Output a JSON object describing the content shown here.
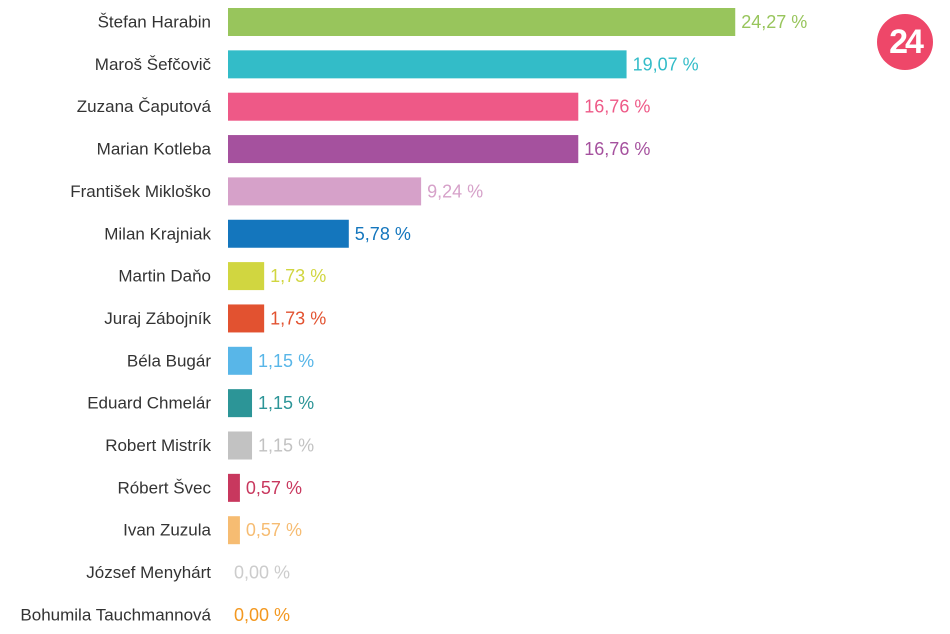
{
  "brand": {
    "logo_text": "24",
    "logo_color": "#ee4769"
  },
  "chart_data": {
    "type": "bar",
    "orientation": "horizontal",
    "categories": [
      "Štefan Harabin",
      "Maroš Šefčovič",
      "Zuzana Čaputová",
      "Marian Kotleba",
      "František Mikloško",
      "Milan Krajniak",
      "Martin Daňo",
      "Juraj Zábojník",
      "Béla Bugár",
      "Eduard Chmelár",
      "Robert Mistrík",
      "Róbert Švec",
      "Ivan Zuzula",
      "József Menyhárt",
      "Bohumila Tauchmannová"
    ],
    "values": [
      24.27,
      19.07,
      16.76,
      16.76,
      9.24,
      5.78,
      1.73,
      1.73,
      1.15,
      1.15,
      1.15,
      0.57,
      0.57,
      0.0,
      0.0
    ],
    "value_labels": [
      "24,27 %",
      "19,07 %",
      "16,76 %",
      "16,76 %",
      "9,24 %",
      "5,78 %",
      "1,73 %",
      "1,73 %",
      "1,15 %",
      "1,15 %",
      "1,15 %",
      "0,57 %",
      "0,57 %",
      "0,00 %",
      "0,00 %"
    ],
    "colors": [
      "#98c55c",
      "#33bcc8",
      "#ee5987",
      "#a5519e",
      "#d6a1c9",
      "#1476bd",
      "#d1d640",
      "#e25230",
      "#58b6e8",
      "#2c9597",
      "#c2c2c2",
      "#c8385e",
      "#f6bc72",
      "#cccccc",
      "#f39820"
    ],
    "unit": "%",
    "grid": false,
    "legend": "none"
  }
}
